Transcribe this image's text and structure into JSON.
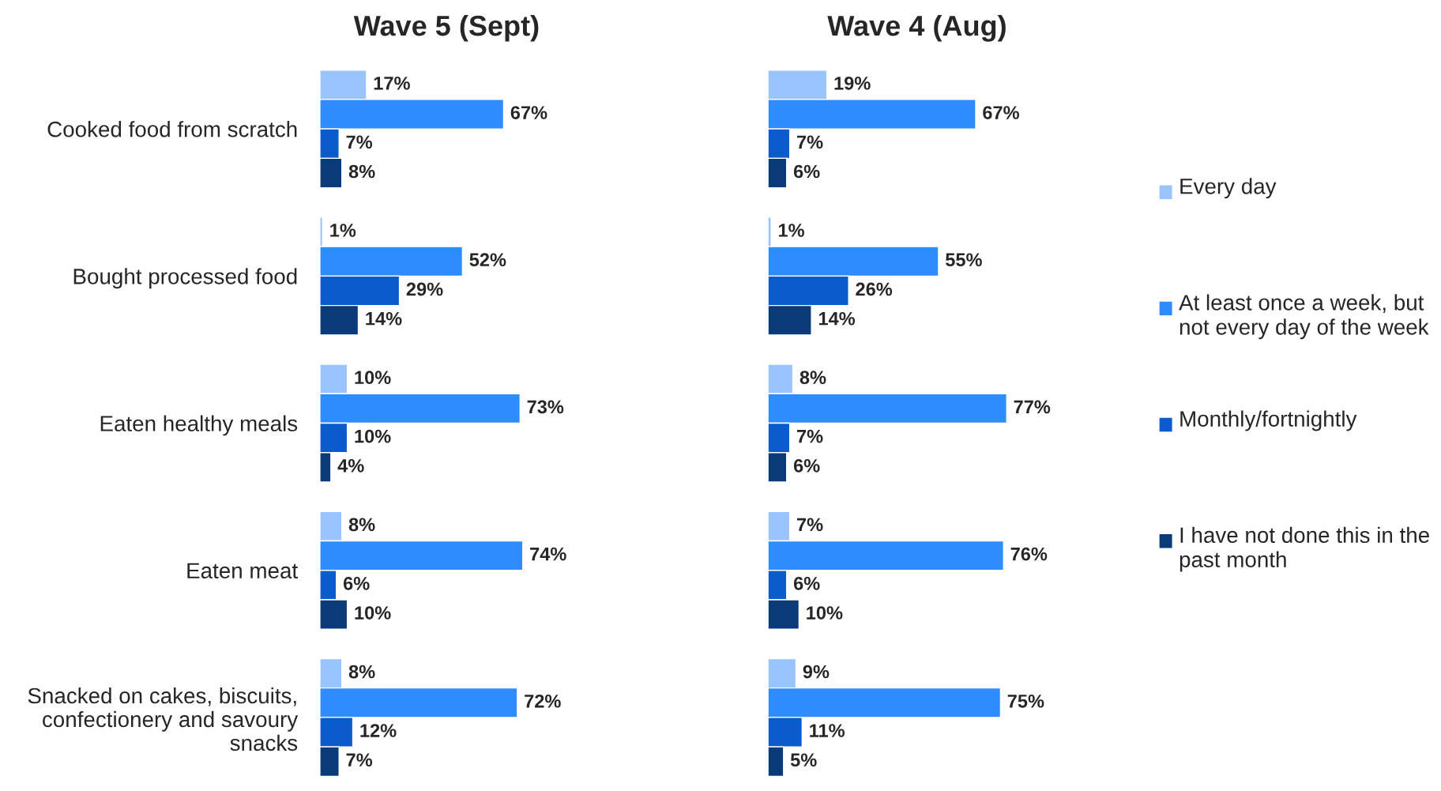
{
  "chart_data": [
    {
      "type": "bar",
      "orientation": "horizontal",
      "title": "Wave 5 (Sept)",
      "tick_labels": "y",
      "categories": [
        "Cooked food from scratch",
        "Bought processed food",
        "Eaten healthy meals",
        "Eaten meat",
        "Snacked on cakes, biscuits, confectionery and savoury snacks"
      ],
      "series": [
        {
          "color": "#99c4ff",
          "values": [
            17,
            1,
            10,
            8,
            8
          ],
          "value_labels": [
            "17%",
            "1%",
            "10%",
            "8%",
            "8%"
          ]
        },
        {
          "color": "#2f8cff",
          "values": [
            67,
            52,
            73,
            74,
            72
          ],
          "value_labels": [
            "67%",
            "52%",
            "73%",
            "74%",
            "72%"
          ]
        },
        {
          "color": "#0a5ccc",
          "values": [
            7,
            29,
            10,
            6,
            12
          ],
          "value_labels": [
            "7%",
            "29%",
            "10%",
            "6%",
            "12%"
          ]
        },
        {
          "color": "#0a3a78",
          "values": [
            8,
            14,
            4,
            10,
            7
          ],
          "value_labels": [
            "8%",
            "14%",
            "4%",
            "10%",
            "7%"
          ]
        }
      ]
    },
    {
      "type": "bar",
      "orientation": "horizontal",
      "title": "Wave 4 (Aug)",
      "legend": "right",
      "categories": [
        null,
        null,
        null,
        null,
        null
      ],
      "series": [
        {
          "name": "Every day",
          "color": "#99c4ff",
          "values": [
            19,
            1,
            8,
            7,
            9
          ],
          "value_labels": [
            "19%",
            "1%",
            "8%",
            "7%",
            "9%"
          ]
        },
        {
          "name": "At least once a week, but not every day of the week",
          "color": "#2f8cff",
          "values": [
            67,
            55,
            77,
            76,
            75
          ],
          "value_labels": [
            "67%",
            "55%",
            "77%",
            "76%",
            "75%"
          ]
        },
        {
          "name": "Monthly/fortnightly",
          "color": "#0a5ccc",
          "values": [
            7,
            26,
            7,
            6,
            11
          ],
          "value_labels": [
            "7%",
            "26%",
            "7%",
            "6%",
            "11%"
          ]
        },
        {
          "name": "I have not done this in the past month",
          "color": "#0a3a78",
          "values": [
            6,
            14,
            6,
            10,
            5
          ],
          "value_labels": [
            "6%",
            "14%",
            "6%",
            "10%",
            "5%"
          ]
        }
      ]
    }
  ]
}
